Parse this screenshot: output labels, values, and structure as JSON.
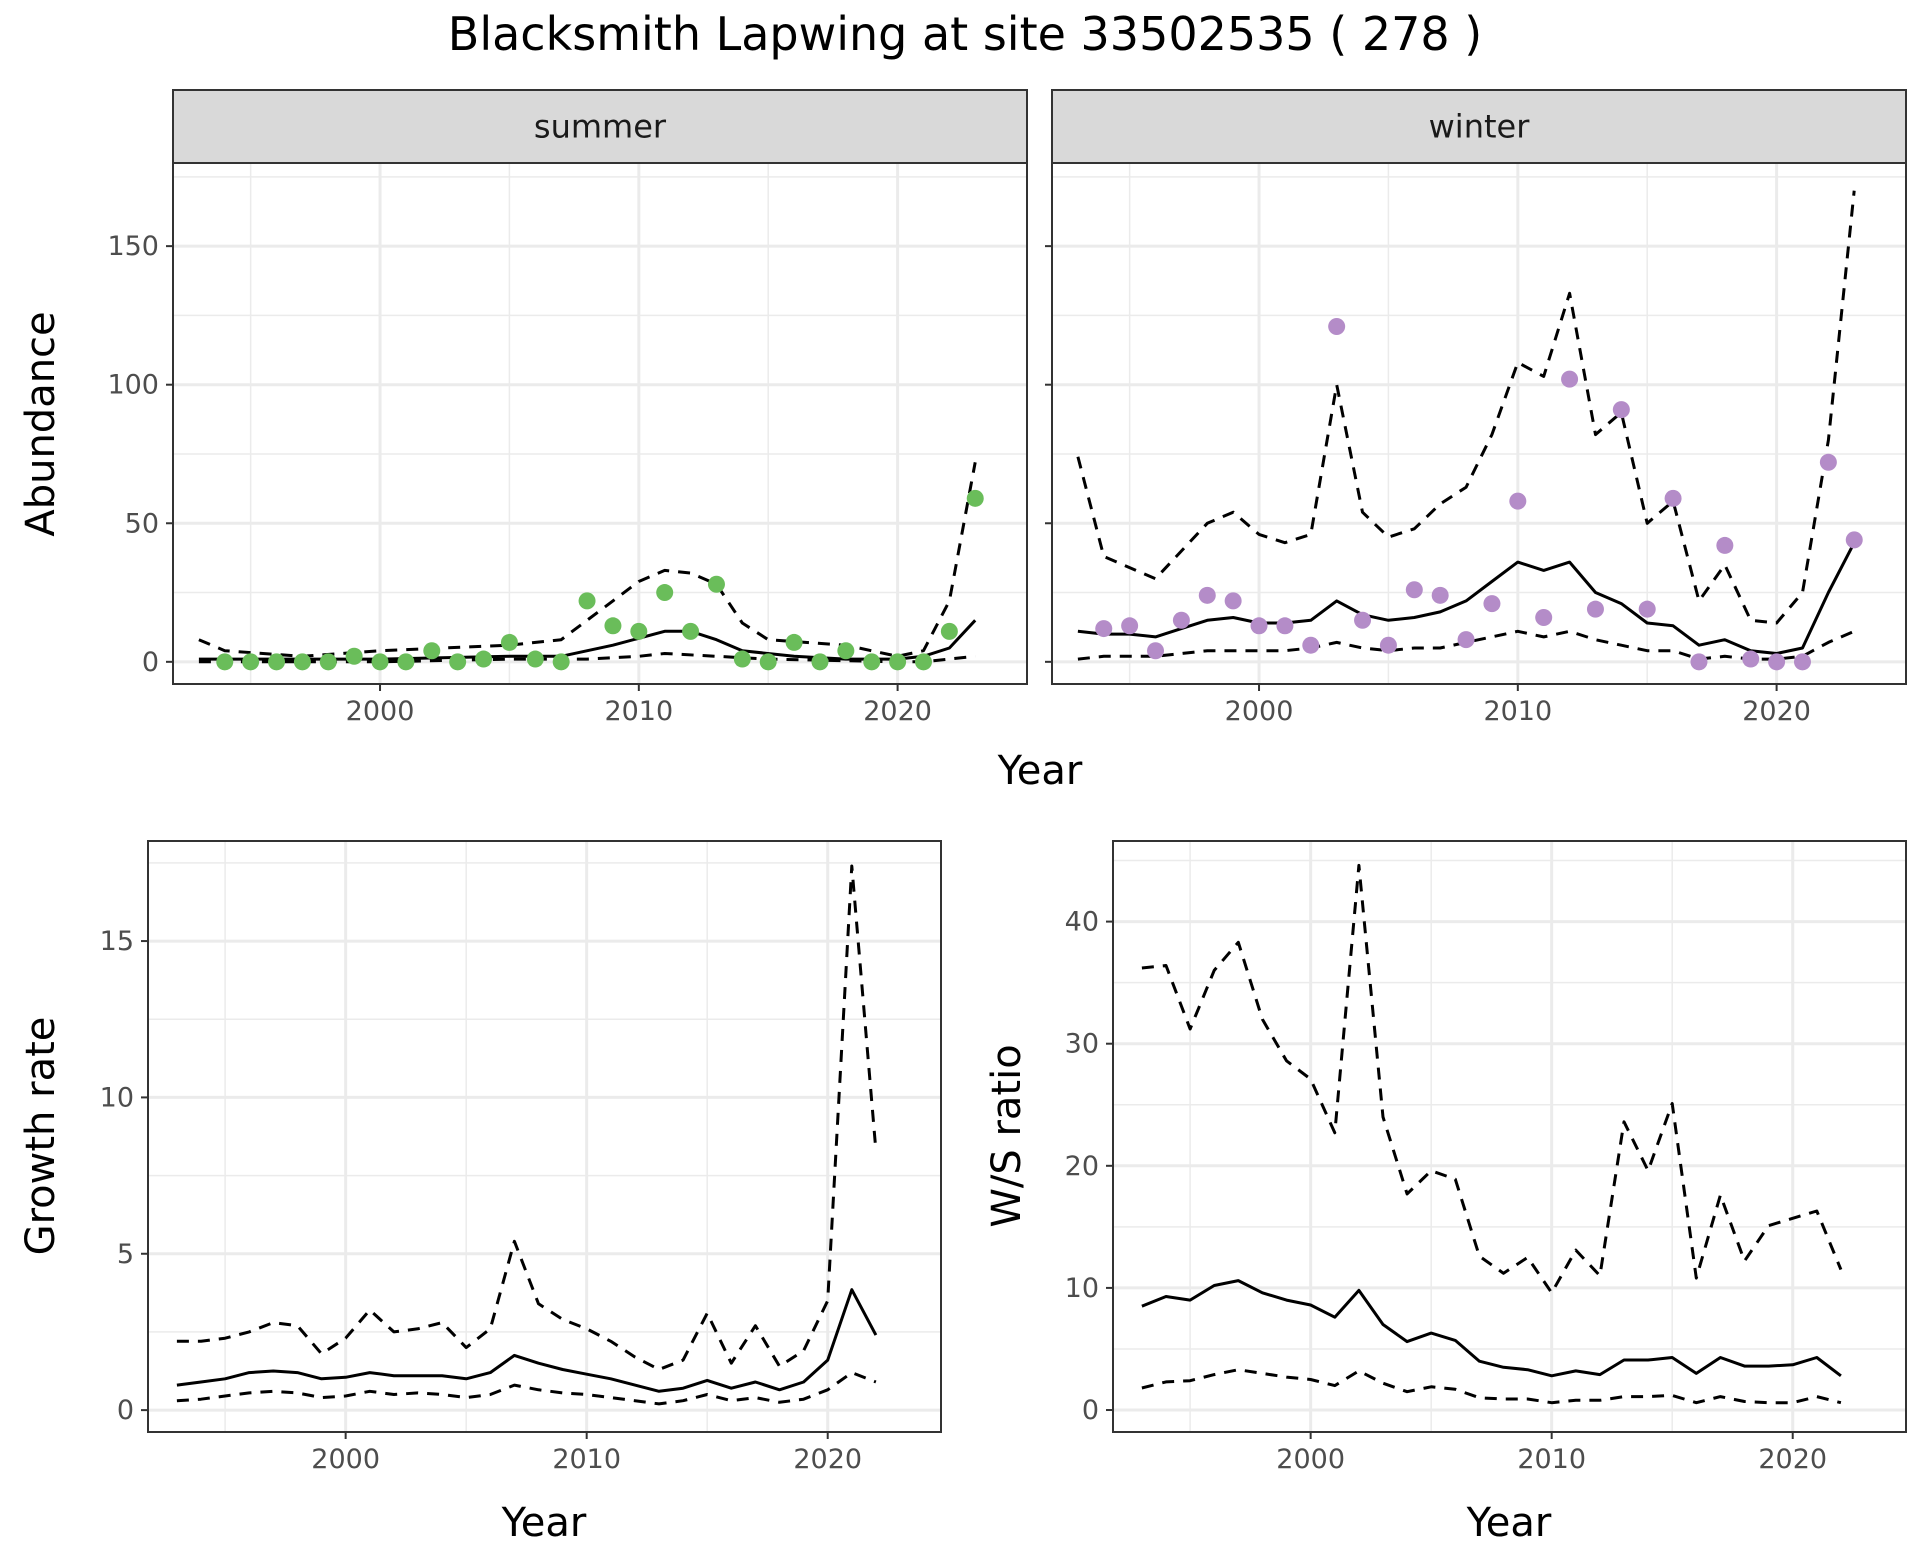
{
  "title": "Blacksmith Lapwing at site 33502535 ( 278 )",
  "colors": {
    "summer_points": "#6abd5a",
    "winter_points": "#b48cc8",
    "lines": "#000000",
    "grid": "#ebebeb",
    "strip_bg": "#d9d9d9"
  },
  "chart_data": [
    {
      "id": "abundance",
      "type": "scatter",
      "title": "Blacksmith Lapwing at site 33502535 ( 278 )",
      "xlabel": "Year",
      "ylabel": "Abundance",
      "xlim": [
        1992,
        2025
      ],
      "ylim": [
        -8,
        180
      ],
      "xticks": [
        2000,
        2010,
        2020
      ],
      "yticks": [
        0,
        50,
        100,
        150
      ],
      "grid": true,
      "facets": [
        {
          "label": "summer",
          "point_color": "#6abd5a",
          "points": {
            "x": [
              1994,
              1995,
              1996,
              1997,
              1998,
              1999,
              2000,
              2001,
              2002,
              2003,
              2004,
              2005,
              2006,
              2007,
              2008,
              2009,
              2010,
              2011,
              2012,
              2013,
              2014,
              2015,
              2016,
              2017,
              2018,
              2019,
              2020,
              2021,
              2022,
              2023
            ],
            "y": [
              0,
              0,
              0,
              0,
              0,
              2,
              0,
              0,
              4,
              0,
              1,
              7,
              1,
              0,
              22,
              13,
              11,
              25,
              11,
              28,
              1,
              0,
              7,
              0,
              4,
              0,
              0,
              0,
              11,
              59
            ]
          },
          "series": [
            {
              "style": "solid",
              "x": [
                1993,
                1995,
                2000,
                2005,
                2007,
                2009,
                2011,
                2012,
                2013,
                2014,
                2016,
                2018,
                2019,
                2020,
                2021,
                2022,
                2023
              ],
              "y": [
                1,
                1,
                1,
                2,
                2,
                6,
                11,
                11,
                8,
                4,
                2,
                1,
                1,
                1,
                2,
                5,
                15
              ]
            },
            {
              "style": "dashed",
              "x": [
                1993,
                1994,
                1997,
                2000,
                2005,
                2007,
                2009,
                2010,
                2011,
                2012,
                2013,
                2014,
                2015,
                2018,
                2020,
                2021,
                2022,
                2023
              ],
              "y": [
                8,
                4,
                2,
                4,
                6,
                8,
                22,
                29,
                33,
                32,
                28,
                14,
                8,
                6,
                2,
                4,
                22,
                72
              ]
            },
            {
              "style": "dashed",
              "x": [
                1993,
                2000,
                2005,
                2008,
                2010,
                2011,
                2013,
                2015,
                2020,
                2021,
                2023
              ],
              "y": [
                0,
                0,
                1,
                1,
                2,
                3,
                2,
                1,
                0,
                0,
                2
              ]
            }
          ]
        },
        {
          "label": "winter",
          "point_color": "#b48cc8",
          "points": {
            "x": [
              1994,
              1995,
              1996,
              1997,
              1998,
              1999,
              2000,
              2001,
              2002,
              2003,
              2004,
              2005,
              2006,
              2007,
              2008,
              2009,
              2010,
              2011,
              2012,
              2013,
              2014,
              2015,
              2016,
              2017,
              2018,
              2019,
              2020,
              2021,
              2022,
              2023
            ],
            "y": [
              12,
              13,
              4,
              15,
              24,
              22,
              13,
              13,
              6,
              121,
              15,
              6,
              26,
              24,
              8,
              21,
              58,
              16,
              102,
              19,
              91,
              19,
              59,
              0,
              42,
              1,
              0,
              0,
              72,
              44
            ]
          },
          "series": [
            {
              "style": "solid",
              "x": [
                1993,
                1994,
                1995,
                1996,
                1997,
                1998,
                1999,
                2000,
                2001,
                2002,
                2003,
                2004,
                2005,
                2006,
                2007,
                2008,
                2009,
                2010,
                2011,
                2012,
                2013,
                2014,
                2015,
                2016,
                2017,
                2018,
                2019,
                2020,
                2021,
                2022,
                2023
              ],
              "y": [
                11,
                10,
                10,
                9,
                12,
                15,
                16,
                14,
                14,
                15,
                22,
                17,
                15,
                16,
                18,
                22,
                29,
                36,
                33,
                36,
                25,
                21,
                14,
                13,
                6,
                8,
                4,
                3,
                5,
                25,
                43
              ]
            },
            {
              "style": "dashed",
              "x": [
                1993,
                1994,
                1995,
                1996,
                1997,
                1998,
                1999,
                2000,
                2001,
                2002,
                2003,
                2004,
                2005,
                2006,
                2007,
                2008,
                2009,
                2010,
                2011,
                2012,
                2013,
                2014,
                2015,
                2016,
                2017,
                2018,
                2019,
                2020,
                2021,
                2022,
                2023
              ],
              "y": [
                74,
                38,
                34,
                30,
                40,
                50,
                54,
                46,
                43,
                46,
                100,
                54,
                45,
                48,
                57,
                63,
                82,
                108,
                103,
                133,
                82,
                90,
                50,
                58,
                22,
                35,
                15,
                14,
                25,
                80,
                170
              ]
            },
            {
              "style": "dashed",
              "x": [
                1993,
                1994,
                1995,
                1996,
                1997,
                1998,
                1999,
                2000,
                2001,
                2002,
                2003,
                2004,
                2005,
                2006,
                2007,
                2008,
                2009,
                2010,
                2011,
                2012,
                2013,
                2014,
                2015,
                2016,
                2017,
                2018,
                2019,
                2020,
                2021,
                2022,
                2023
              ],
              "y": [
                1,
                2,
                2,
                2,
                3,
                4,
                4,
                4,
                4,
                5,
                7,
                5,
                4,
                5,
                5,
                7,
                9,
                11,
                9,
                11,
                8,
                6,
                4,
                4,
                1,
                2,
                1,
                1,
                2,
                7,
                11
              ]
            }
          ]
        }
      ]
    },
    {
      "id": "growth",
      "type": "line",
      "xlabel": "Year",
      "ylabel": "Growth rate",
      "xlim": [
        1991.8,
        2024.7
      ],
      "ylim": [
        -0.7,
        18.2
      ],
      "xticks": [
        2000,
        2010,
        2020
      ],
      "yticks": [
        0,
        5,
        10,
        15
      ],
      "grid": true,
      "series": [
        {
          "style": "solid",
          "x": [
            1993,
            1994,
            1995,
            1996,
            1997,
            1998,
            1999,
            2000,
            2001,
            2002,
            2003,
            2004,
            2005,
            2006,
            2007,
            2008,
            2009,
            2010,
            2011,
            2012,
            2013,
            2014,
            2015,
            2016,
            2017,
            2018,
            2019,
            2020,
            2021,
            2022
          ],
          "y": [
            0.8,
            0.9,
            1.0,
            1.2,
            1.25,
            1.2,
            1.0,
            1.05,
            1.2,
            1.1,
            1.1,
            1.1,
            1.0,
            1.2,
            1.75,
            1.5,
            1.3,
            1.15,
            1.0,
            0.8,
            0.6,
            0.7,
            0.95,
            0.7,
            0.9,
            0.65,
            0.9,
            1.6,
            3.85,
            2.4
          ]
        },
        {
          "style": "dashed",
          "x": [
            1993,
            1994,
            1995,
            1996,
            1997,
            1998,
            1999,
            2000,
            2001,
            2002,
            2003,
            2004,
            2005,
            2006,
            2007,
            2008,
            2009,
            2010,
            2011,
            2012,
            2013,
            2014,
            2015,
            2016,
            2017,
            2018,
            2019,
            2020,
            2021,
            2022
          ],
          "y": [
            2.2,
            2.2,
            2.3,
            2.5,
            2.8,
            2.7,
            1.8,
            2.3,
            3.2,
            2.5,
            2.6,
            2.8,
            2.0,
            2.6,
            5.4,
            3.4,
            2.9,
            2.6,
            2.2,
            1.7,
            1.3,
            1.6,
            3.1,
            1.5,
            2.7,
            1.4,
            1.9,
            3.5,
            17.4,
            8.3
          ]
        },
        {
          "style": "dashed",
          "x": [
            1993,
            1994,
            1995,
            1996,
            1997,
            1998,
            1999,
            2000,
            2001,
            2002,
            2003,
            2004,
            2005,
            2006,
            2007,
            2008,
            2009,
            2010,
            2011,
            2012,
            2013,
            2014,
            2015,
            2016,
            2017,
            2018,
            2019,
            2020,
            2021,
            2022
          ],
          "y": [
            0.3,
            0.35,
            0.45,
            0.55,
            0.6,
            0.55,
            0.4,
            0.45,
            0.6,
            0.5,
            0.55,
            0.5,
            0.4,
            0.5,
            0.8,
            0.65,
            0.55,
            0.5,
            0.4,
            0.3,
            0.2,
            0.3,
            0.5,
            0.3,
            0.4,
            0.25,
            0.35,
            0.65,
            1.2,
            0.9
          ]
        }
      ]
    },
    {
      "id": "ratio",
      "type": "line",
      "xlabel": "Year",
      "ylabel": "W/S ratio",
      "xlim": [
        1991.8,
        2024.7
      ],
      "ylim": [
        -1.8,
        46.6
      ],
      "xticks": [
        2000,
        2010,
        2020
      ],
      "yticks": [
        0,
        10,
        20,
        30,
        40
      ],
      "grid": true,
      "series": [
        {
          "style": "solid",
          "x": [
            1993,
            1994,
            1995,
            1996,
            1997,
            1998,
            1999,
            2000,
            2001,
            2002,
            2003,
            2004,
            2005,
            2006,
            2007,
            2008,
            2009,
            2010,
            2011,
            2012,
            2013,
            2014,
            2015,
            2016,
            2017,
            2018,
            2019,
            2020,
            2021,
            2022
          ],
          "y": [
            8.5,
            9.3,
            9.0,
            10.2,
            10.6,
            9.6,
            9.0,
            8.6,
            7.6,
            9.8,
            7.0,
            5.6,
            6.3,
            5.7,
            4.0,
            3.5,
            3.3,
            2.8,
            3.2,
            2.9,
            4.1,
            4.1,
            4.3,
            3.0,
            4.3,
            3.6,
            3.6,
            3.7,
            4.3,
            2.8
          ]
        },
        {
          "style": "dashed",
          "x": [
            1993,
            1994,
            1995,
            1996,
            1997,
            1998,
            1999,
            2000,
            2001,
            2002,
            2003,
            2004,
            2005,
            2006,
            2007,
            2008,
            2009,
            2010,
            2011,
            2012,
            2013,
            2014,
            2015,
            2016,
            2017,
            2018,
            2019,
            2020,
            2021,
            2022
          ],
          "y": [
            36.2,
            36.4,
            31.2,
            36.0,
            38.3,
            32.0,
            28.6,
            27.1,
            22.7,
            44.6,
            24.0,
            17.7,
            19.6,
            18.9,
            12.6,
            11.2,
            12.5,
            9.6,
            13.1,
            11.0,
            23.6,
            19.6,
            25.1,
            10.8,
            17.6,
            12.2,
            15.1,
            15.7,
            16.3,
            11.5
          ]
        },
        {
          "style": "dashed",
          "x": [
            1993,
            1994,
            1995,
            1996,
            1997,
            1998,
            1999,
            2000,
            2001,
            2002,
            2003,
            2004,
            2005,
            2006,
            2007,
            2008,
            2009,
            2010,
            2011,
            2012,
            2013,
            2014,
            2015,
            2016,
            2017,
            2018,
            2019,
            2020,
            2021,
            2022
          ],
          "y": [
            1.8,
            2.3,
            2.4,
            2.9,
            3.3,
            3.0,
            2.7,
            2.5,
            2.0,
            3.2,
            2.2,
            1.5,
            1.9,
            1.7,
            1.0,
            0.9,
            0.9,
            0.6,
            0.8,
            0.8,
            1.1,
            1.1,
            1.2,
            0.6,
            1.1,
            0.7,
            0.6,
            0.6,
            1.1,
            0.6
          ]
        }
      ]
    }
  ]
}
